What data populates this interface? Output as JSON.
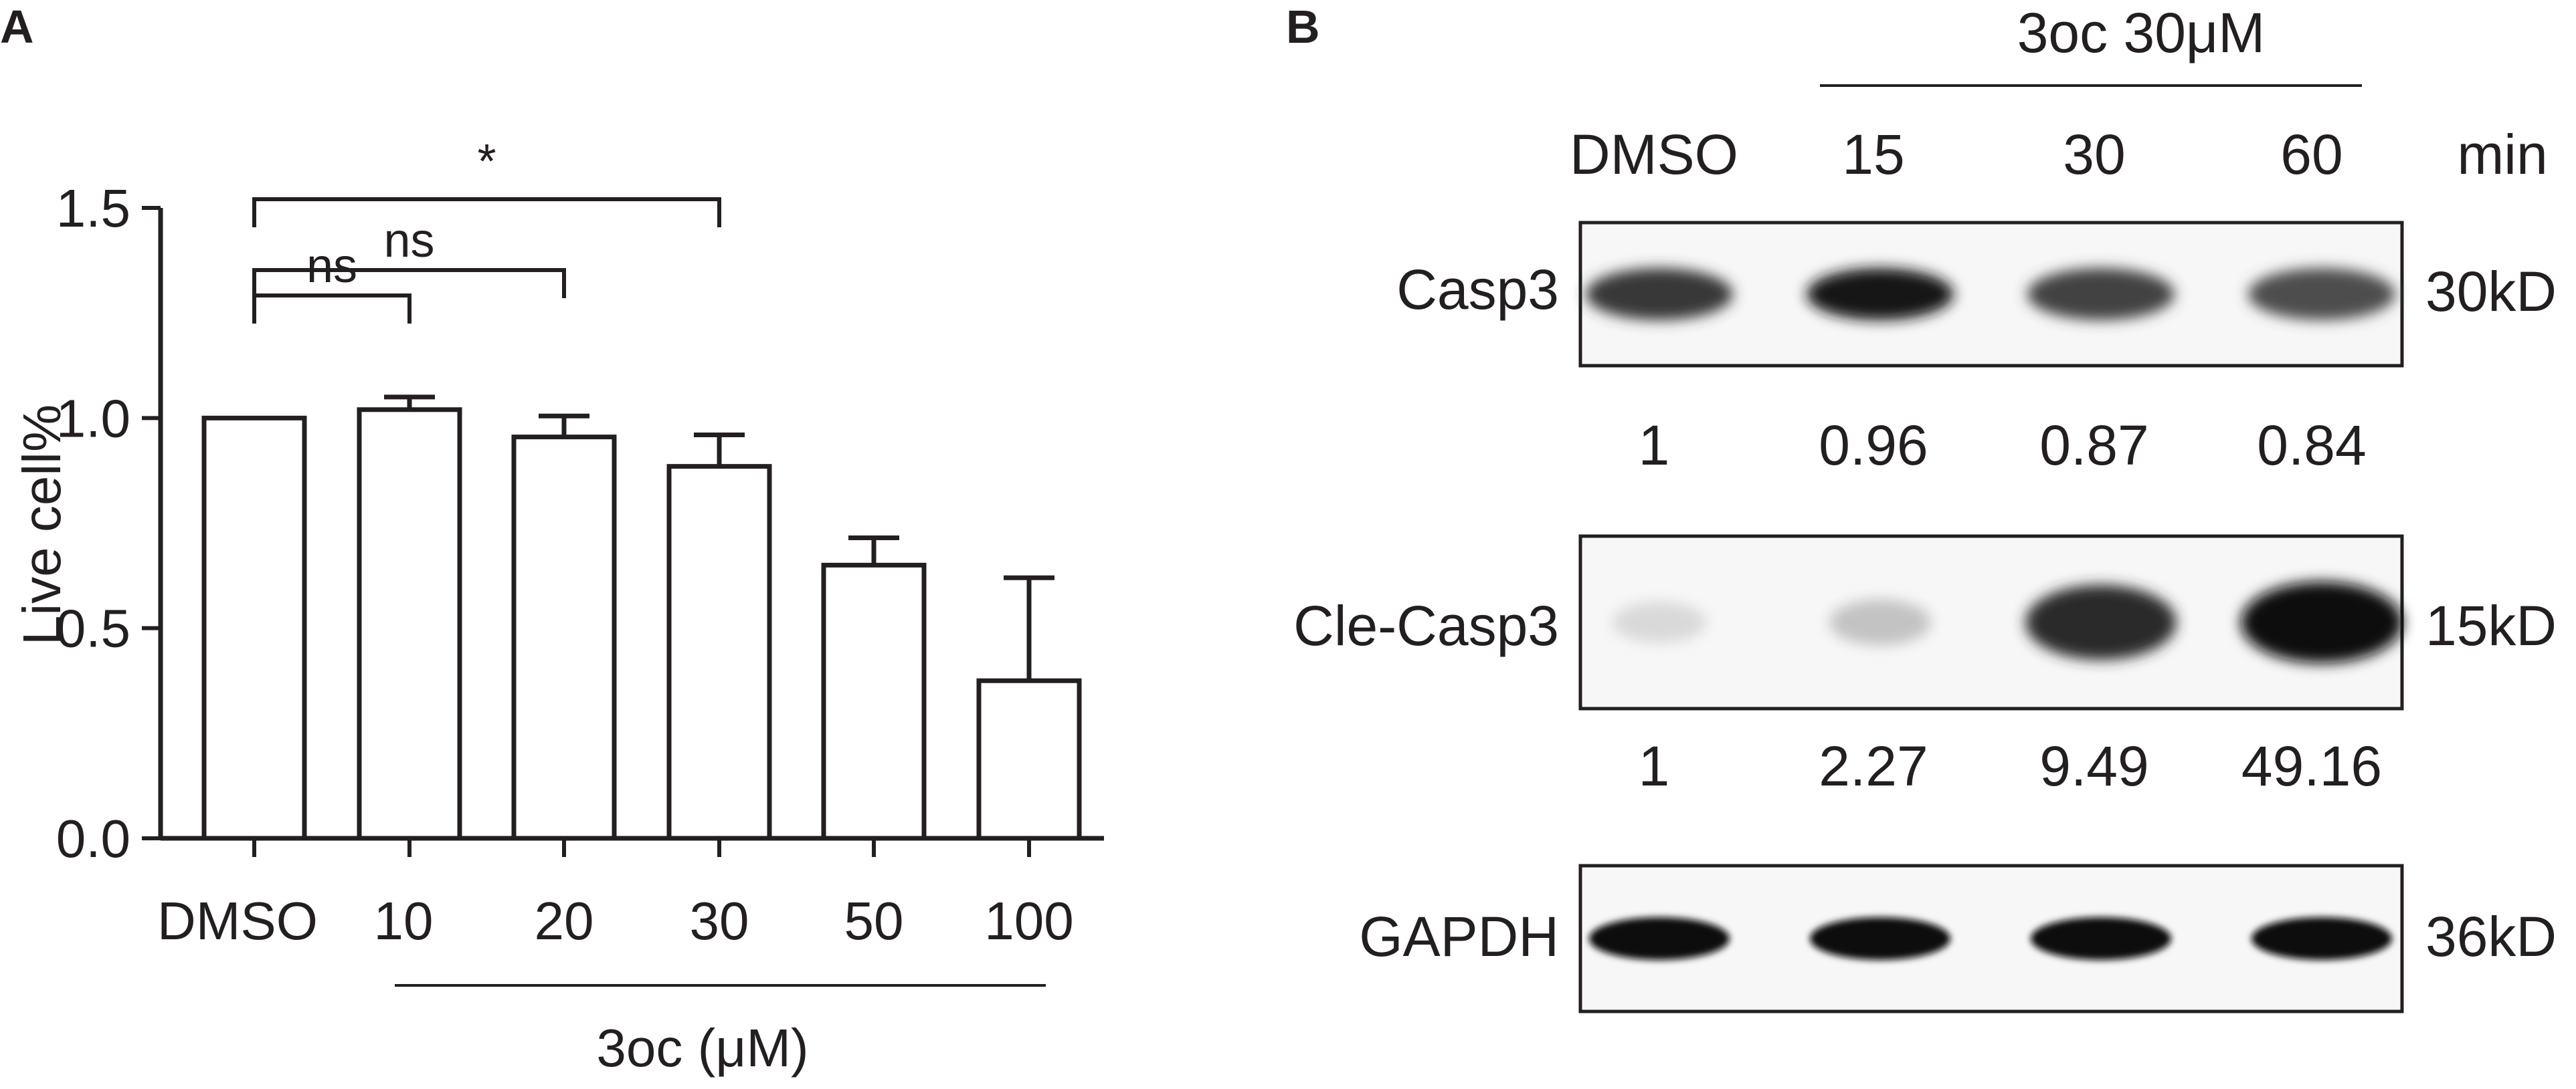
{
  "panel_a_label": "A",
  "panel_b_label": "B",
  "chart_data": {
    "type": "bar",
    "ylabel": "Live cell%",
    "xlabel": "3oc (μM)",
    "categories": [
      "DMSO",
      "10",
      "20",
      "30",
      "50",
      "100"
    ],
    "values": [
      1.0,
      1.02,
      0.955,
      0.885,
      0.65,
      0.375
    ],
    "errors": [
      0.0,
      0.03,
      0.05,
      0.075,
      0.065,
      0.245
    ],
    "ylim": [
      0,
      1.5
    ],
    "yticks": [
      "0.0",
      "0.5",
      "1.0",
      "1.5"
    ],
    "significance": [
      {
        "from": "DMSO",
        "to": "10",
        "label": "ns"
      },
      {
        "from": "DMSO",
        "to": "20",
        "label": "ns"
      },
      {
        "from": "DMSO",
        "to": "30",
        "label": "*"
      }
    ]
  },
  "western_blot": {
    "treatment_header": "3oc 30μM",
    "lanes": [
      "DMSO",
      "15",
      "30",
      "60"
    ],
    "time_unit": "min",
    "blots": [
      {
        "protein": "Casp3",
        "size": "30kD",
        "quant": [
          "1",
          "0.96",
          "0.87",
          "0.84"
        ],
        "band_intensity": [
          0.8,
          0.95,
          0.75,
          0.7
        ]
      },
      {
        "protein": "Cle-Casp3",
        "size": "15kD",
        "quant": [
          "1",
          "2.27",
          "9.49",
          "49.16"
        ],
        "band_intensity": [
          0.08,
          0.18,
          0.85,
          1.0
        ]
      },
      {
        "protein": "GAPDH",
        "size": "36kD",
        "quant": [],
        "band_intensity": [
          1.0,
          1.0,
          1.0,
          1.0
        ]
      }
    ]
  }
}
